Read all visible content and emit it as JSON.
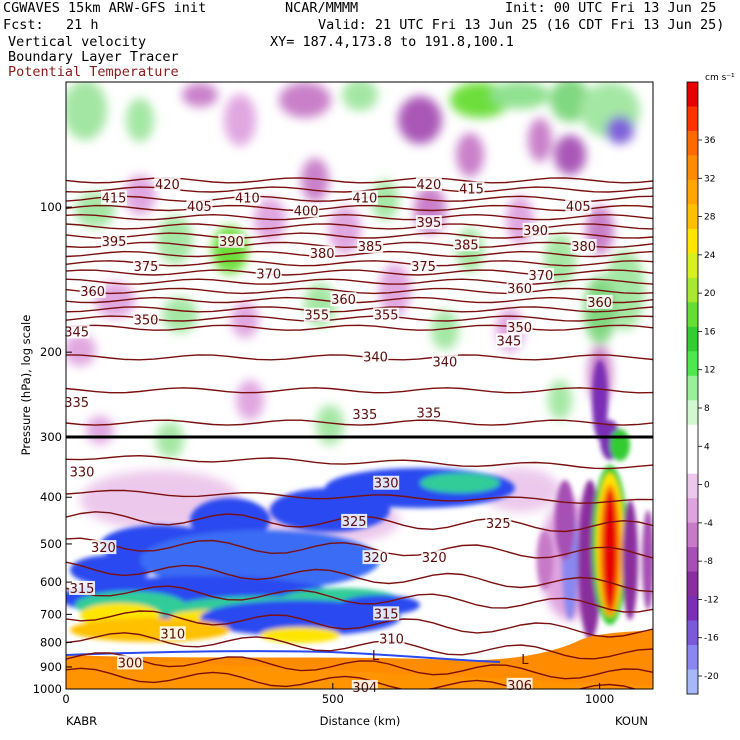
{
  "header": {
    "model": "CGWAVES 15km ARW-GFS init",
    "org": "NCAR/MMMM",
    "init": "Init: 00 UTC Fri 13 Jun 25",
    "fcst_label": "Fcst:",
    "fcst_value": "21 h",
    "valid": "Valid: 21 UTC Fri 13 Jun 25 (16 CDT Fri 13 Jun 25)",
    "field1": "Vertical velocity",
    "field2": "Boundary Layer Tracer",
    "field3": "Potential Temperature",
    "xy": "XY= 187.4,173.8 to 191.8,100.1"
  },
  "colors": {
    "theta": "#7a0f0f",
    "field3_text": "#8b1a1a"
  },
  "chart_data": {
    "type": "heatmap",
    "title": "",
    "xlabel": "Distance (km)",
    "ylabel": "Pressure (hPa), log scale",
    "x_ticks": [
      0,
      500,
      1000
    ],
    "x_endpoints": [
      "KABR",
      "KOUN"
    ],
    "y_ticks": [
      100,
      200,
      300,
      400,
      500,
      600,
      700,
      800,
      900,
      1000
    ],
    "y_scale": "log",
    "xlim": [
      0,
      1100
    ],
    "colorbar": {
      "unit": "cm s⁻¹",
      "labels": [
        "36",
        "32",
        "28",
        "24",
        "20",
        "16",
        "12",
        "8",
        "4",
        "0",
        "-4",
        "-8",
        "-12",
        "-16",
        "-20"
      ],
      "colors": [
        "#e60000",
        "#ff3300",
        "#ff6a00",
        "#ff8c00",
        "#ffa500",
        "#ffc000",
        "#ffe500",
        "#d7f020",
        "#a8e830",
        "#66dd33",
        "#33cc33",
        "#4ee84e",
        "#9af09a",
        "#d2f8d2",
        "#ffffff",
        "#ffffff",
        "#ecc9ec",
        "#dfa3df",
        "#c77ac7",
        "#a64fb4",
        "#8a2d9e",
        "#7a2fb5",
        "#7a5ad8",
        "#8a88ee",
        "#a6b8f8"
      ]
    },
    "theta_labels": [
      {
        "v": "415",
        "x": 90,
        "p": 96
      },
      {
        "v": "420",
        "x": 190,
        "p": 90
      },
      {
        "v": "405",
        "x": 250,
        "p": 100
      },
      {
        "v": "410",
        "x": 340,
        "p": 96
      },
      {
        "v": "400",
        "x": 450,
        "p": 102
      },
      {
        "v": "410",
        "x": 560,
        "p": 96
      },
      {
        "v": "420",
        "x": 680,
        "p": 90
      },
      {
        "v": "415",
        "x": 760,
        "p": 92
      },
      {
        "v": "405",
        "x": 960,
        "p": 100
      },
      {
        "v": "395",
        "x": 90,
        "p": 118
      },
      {
        "v": "390",
        "x": 310,
        "p": 118
      },
      {
        "v": "380",
        "x": 480,
        "p": 125
      },
      {
        "v": "385",
        "x": 570,
        "p": 121
      },
      {
        "v": "395",
        "x": 680,
        "p": 108
      },
      {
        "v": "385",
        "x": 750,
        "p": 120
      },
      {
        "v": "390",
        "x": 880,
        "p": 112
      },
      {
        "v": "380",
        "x": 970,
        "p": 121
      },
      {
        "v": "375",
        "x": 150,
        "p": 133
      },
      {
        "v": "370",
        "x": 380,
        "p": 138
      },
      {
        "v": "375",
        "x": 670,
        "p": 133
      },
      {
        "v": "370",
        "x": 890,
        "p": 139
      },
      {
        "v": "360",
        "x": 50,
        "p": 150
      },
      {
        "v": "360",
        "x": 520,
        "p": 156
      },
      {
        "v": "360",
        "x": 850,
        "p": 148
      },
      {
        "v": "360",
        "x": 1000,
        "p": 158
      },
      {
        "v": "350",
        "x": 150,
        "p": 172
      },
      {
        "v": "355",
        "x": 470,
        "p": 168
      },
      {
        "v": "355",
        "x": 600,
        "p": 168
      },
      {
        "v": "345",
        "x": 20,
        "p": 182
      },
      {
        "v": "350",
        "x": 850,
        "p": 178
      },
      {
        "v": "340",
        "x": 580,
        "p": 205
      },
      {
        "v": "340",
        "x": 710,
        "p": 210
      },
      {
        "v": "345",
        "x": 830,
        "p": 190
      },
      {
        "v": "335",
        "x": 20,
        "p": 255
      },
      {
        "v": "335",
        "x": 560,
        "p": 270
      },
      {
        "v": "335",
        "x": 680,
        "p": 268
      },
      {
        "v": "330",
        "x": 30,
        "p": 355
      },
      {
        "v": "330",
        "x": 600,
        "p": 375
      },
      {
        "v": "325",
        "x": 540,
        "p": 450
      },
      {
        "v": "325",
        "x": 810,
        "p": 455
      },
      {
        "v": "320",
        "x": 70,
        "p": 510
      },
      {
        "v": "320",
        "x": 580,
        "p": 535
      },
      {
        "v": "320",
        "x": 690,
        "p": 535
      },
      {
        "v": "315",
        "x": 30,
        "p": 620
      },
      {
        "v": "315",
        "x": 600,
        "p": 700
      },
      {
        "v": "310",
        "x": 200,
        "p": 770
      },
      {
        "v": "310",
        "x": 610,
        "p": 790
      },
      {
        "v": "300",
        "x": 120,
        "p": 885
      },
      {
        "v": "304",
        "x": 560,
        "p": 995
      },
      {
        "v": "306",
        "x": 850,
        "p": 985
      }
    ],
    "markers": [
      {
        "v": "L",
        "x": 580,
        "p": 855
      },
      {
        "v": "L",
        "x": 860,
        "p": 870
      }
    ]
  }
}
